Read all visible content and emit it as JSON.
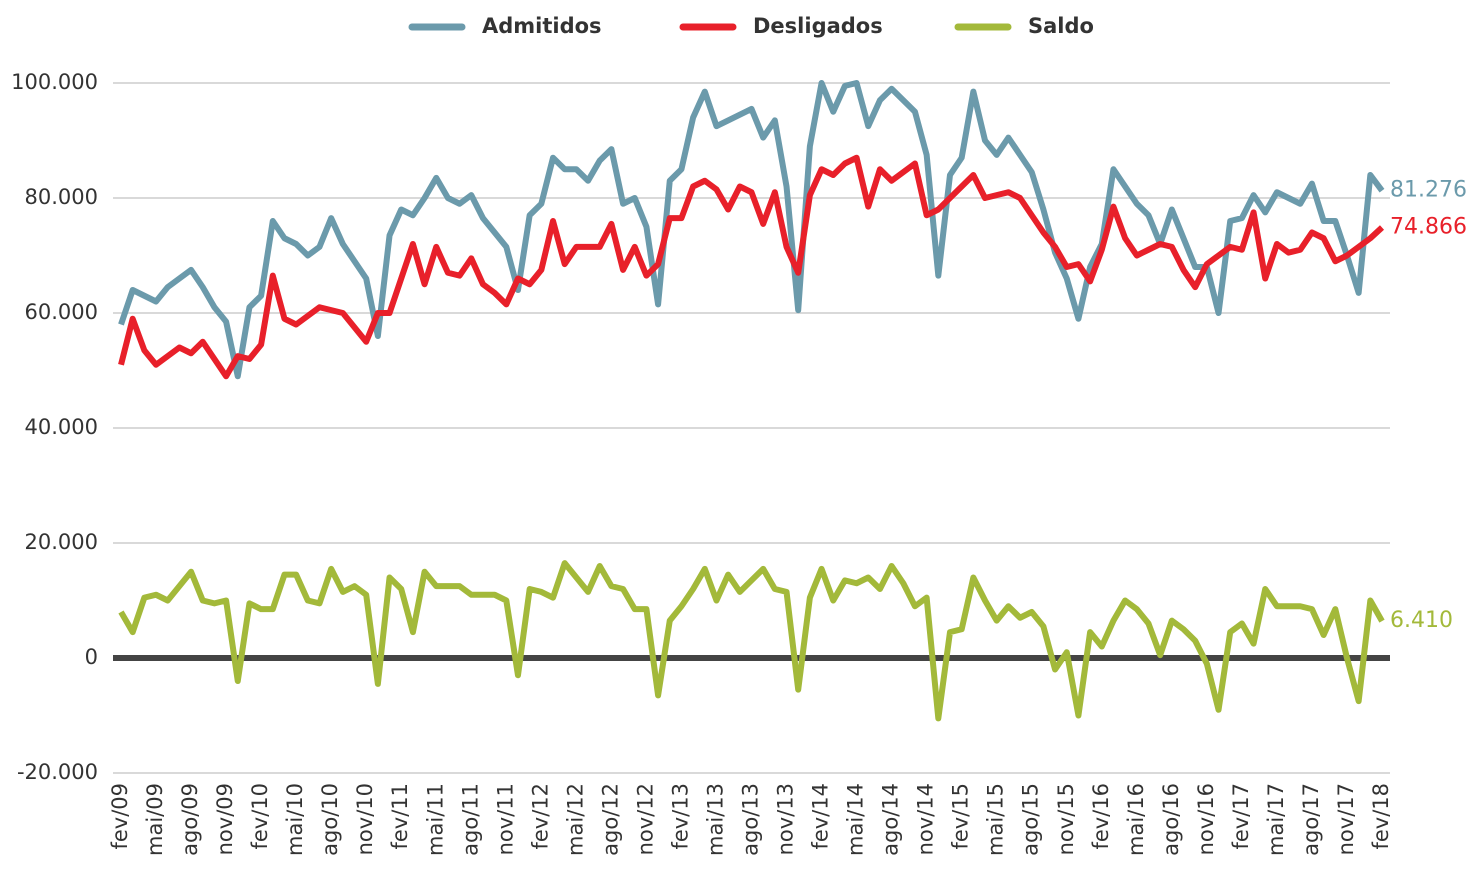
{
  "chart_data": {
    "type": "line",
    "categories": [
      "fev/09",
      null,
      null,
      "mai/09",
      null,
      null,
      "ago/09",
      null,
      null,
      "nov/09",
      null,
      null,
      "fev/10",
      null,
      null,
      "mai/10",
      null,
      null,
      "ago/10",
      null,
      null,
      "nov/10",
      null,
      null,
      "fev/11",
      null,
      null,
      "mai/11",
      null,
      null,
      "ago/11",
      null,
      null,
      "nov/11",
      null,
      null,
      "fev/12",
      null,
      null,
      "mai/12",
      null,
      null,
      "ago/12",
      null,
      null,
      "nov/12",
      null,
      null,
      "fev/13",
      null,
      null,
      "mai/13",
      null,
      null,
      "ago/13",
      null,
      null,
      "nov/13",
      null,
      null,
      "fev/14",
      null,
      null,
      "mai/14",
      null,
      null,
      "ago/14",
      null,
      null,
      "nov/14",
      null,
      null,
      "fev/15",
      null,
      null,
      "mai/15",
      null,
      null,
      "ago/15",
      null,
      null,
      "nov/15",
      null,
      null,
      "fev/16",
      null,
      null,
      "mai/16",
      null,
      null,
      "ago/16",
      null,
      null,
      "nov/16",
      null,
      null,
      "fev/17",
      null,
      null,
      "mai/17",
      null,
      null,
      "ago/17",
      null,
      null,
      "nov/17",
      null,
      null,
      "fev/18"
    ],
    "series": [
      {
        "name": "Admitidos",
        "color": "#6b9aab",
        "values": [
          58000,
          64000,
          63000,
          62000,
          64500,
          66000,
          67500,
          64500,
          61000,
          58500,
          49000,
          61000,
          63000,
          76000,
          73000,
          72000,
          70000,
          71500,
          76500,
          72000,
          69000,
          66000,
          56000,
          73500,
          78000,
          77000,
          80000,
          83500,
          80000,
          79000,
          80500,
          76500,
          74000,
          71500,
          64000,
          77000,
          79000,
          87000,
          85000,
          85000,
          83000,
          86500,
          88500,
          79000,
          80000,
          75000,
          61500,
          83000,
          85000,
          94000,
          98500,
          92500,
          93500,
          94500,
          95500,
          90500,
          93500,
          82000,
          60500,
          89000,
          100000,
          95000,
          99500,
          100000,
          92500,
          97000,
          99000,
          97000,
          95000,
          87500,
          66500,
          84000,
          87000,
          98500,
          90000,
          87500,
          90500,
          87500,
          84500,
          78000,
          70500,
          66000,
          59000,
          68000,
          72000,
          85000,
          82000,
          79000,
          77000,
          72000,
          78000,
          73000,
          68000,
          68000,
          60000,
          76000,
          76500,
          80500,
          77500,
          81000,
          80000,
          79000,
          82500,
          76000,
          76000,
          70000,
          63500,
          84000,
          81276
        ],
        "value_labels": [
          null,
          null,
          null,
          null,
          null,
          null,
          null,
          null,
          null,
          null,
          null,
          null,
          null,
          null,
          null,
          null,
          null,
          null,
          null,
          null,
          null,
          null,
          null,
          null,
          null,
          null,
          null,
          null,
          null,
          null,
          null,
          null,
          null,
          null,
          null,
          null,
          null,
          null,
          null,
          null,
          null,
          null,
          null,
          null,
          null,
          null,
          null,
          null,
          null,
          null,
          null,
          null,
          null,
          null,
          null,
          null,
          null,
          null,
          null,
          null,
          null,
          null,
          null,
          null,
          null,
          null,
          null,
          null,
          null,
          null,
          null,
          null,
          null,
          null,
          null,
          null,
          null,
          null,
          null,
          null,
          null,
          null,
          null,
          null,
          null,
          null,
          null,
          null,
          null,
          null,
          null,
          null,
          null,
          null,
          null,
          null,
          null,
          null,
          null,
          null,
          null,
          null,
          null,
          null,
          null,
          null,
          null,
          null,
          "81.276"
        ]
      },
      {
        "name": "Desligados",
        "color": "#e8202a",
        "values": [
          51000,
          59000,
          53500,
          51000,
          52500,
          54000,
          53000,
          55000,
          52000,
          49000,
          52500,
          52000,
          54500,
          66500,
          59000,
          58000,
          59500,
          61000,
          60500,
          60000,
          57500,
          55000,
          60000,
          60000,
          66000,
          72000,
          65000,
          71500,
          67000,
          66500,
          69500,
          65000,
          63500,
          61500,
          66000,
          65000,
          67500,
          76000,
          68500,
          71500,
          71500,
          71500,
          75500,
          67500,
          71500,
          66500,
          68500,
          76500,
          76500,
          82000,
          83000,
          81500,
          78000,
          82000,
          81000,
          75500,
          81000,
          71500,
          67000,
          80500,
          85000,
          84000,
          86000,
          87000,
          78500,
          85000,
          83000,
          84500,
          86000,
          77000,
          78000,
          80000,
          82000,
          84000,
          80000,
          80500,
          81000,
          80000,
          77000,
          74000,
          71500,
          68000,
          68500,
          65500,
          71000,
          78500,
          73000,
          70000,
          71000,
          72000,
          71500,
          67500,
          64500,
          68500,
          70000,
          71500,
          71000,
          77500,
          66000,
          72000,
          70500,
          71000,
          74000,
          73000,
          69000,
          70000,
          71500,
          73000,
          74866
        ],
        "value_labels": [
          null,
          null,
          null,
          null,
          null,
          null,
          null,
          null,
          null,
          null,
          null,
          null,
          null,
          null,
          null,
          null,
          null,
          null,
          null,
          null,
          null,
          null,
          null,
          null,
          null,
          null,
          null,
          null,
          null,
          null,
          null,
          null,
          null,
          null,
          null,
          null,
          null,
          null,
          null,
          null,
          null,
          null,
          null,
          null,
          null,
          null,
          null,
          null,
          null,
          null,
          null,
          null,
          null,
          null,
          null,
          null,
          null,
          null,
          null,
          null,
          null,
          null,
          null,
          null,
          null,
          null,
          null,
          null,
          null,
          null,
          null,
          null,
          null,
          null,
          null,
          null,
          null,
          null,
          null,
          null,
          null,
          null,
          null,
          null,
          null,
          null,
          null,
          null,
          null,
          null,
          null,
          null,
          null,
          null,
          null,
          null,
          null,
          null,
          null,
          null,
          null,
          null,
          null,
          null,
          null,
          null,
          null,
          null,
          "74.866"
        ]
      },
      {
        "name": "Saldo",
        "color": "#a3b93a",
        "values": [
          8000,
          4500,
          10500,
          11000,
          10000,
          12500,
          15000,
          10000,
          9500,
          10000,
          -4000,
          9500,
          8500,
          8500,
          14500,
          14500,
          10000,
          9500,
          15500,
          11500,
          12500,
          11000,
          -4500,
          14000,
          12000,
          4500,
          15000,
          12500,
          12500,
          12500,
          11000,
          11000,
          11000,
          10000,
          -3000,
          12000,
          11500,
          10500,
          16500,
          14000,
          11500,
          16000,
          12500,
          12000,
          8500,
          8500,
          -6500,
          6500,
          9000,
          12000,
          15500,
          10000,
          14500,
          11500,
          13500,
          15500,
          12000,
          11500,
          -5500,
          10500,
          15500,
          10000,
          13500,
          13000,
          14000,
          12000,
          16000,
          13000,
          9000,
          10500,
          -10500,
          4500,
          5000,
          14000,
          10000,
          6500,
          9000,
          7000,
          8000,
          5500,
          -2000,
          1000,
          -10000,
          4500,
          2000,
          6500,
          10000,
          8500,
          6000,
          500,
          6500,
          5000,
          3000,
          -1000,
          -9000,
          4500,
          6000,
          2500,
          12000,
          9000,
          9000,
          9000,
          8500,
          4000,
          8500,
          0,
          -7500,
          10000,
          6410
        ],
        "value_labels": [
          null,
          null,
          null,
          null,
          null,
          null,
          null,
          null,
          null,
          null,
          null,
          null,
          null,
          null,
          null,
          null,
          null,
          null,
          null,
          null,
          null,
          null,
          null,
          null,
          null,
          null,
          null,
          null,
          null,
          null,
          null,
          null,
          null,
          null,
          null,
          null,
          null,
          null,
          null,
          null,
          null,
          null,
          null,
          null,
          null,
          null,
          null,
          null,
          null,
          null,
          null,
          null,
          null,
          null,
          null,
          null,
          null,
          null,
          null,
          null,
          null,
          null,
          null,
          null,
          null,
          null,
          null,
          null,
          null,
          null,
          null,
          null,
          null,
          null,
          null,
          null,
          null,
          null,
          null,
          null,
          null,
          null,
          null,
          null,
          null,
          null,
          null,
          null,
          null,
          null,
          null,
          null,
          null,
          null,
          null,
          null,
          null,
          null,
          null,
          null,
          null,
          null,
          null,
          null,
          null,
          null,
          null,
          null,
          "6.410"
        ]
      }
    ],
    "ylim": [
      -20000,
      100000
    ],
    "yticks": [
      {
        "value": -20000,
        "label": "-20.000"
      },
      0,
      {
        "value": 20000,
        "label": "20.000"
      },
      {
        "value": 40000,
        "label": "40.000"
      },
      {
        "value": 60000,
        "label": "60.000"
      },
      {
        "value": 80000,
        "label": "80.000"
      },
      {
        "value": 100000,
        "label": "100.000"
      }
    ],
    "grid": true,
    "legend": "top"
  }
}
